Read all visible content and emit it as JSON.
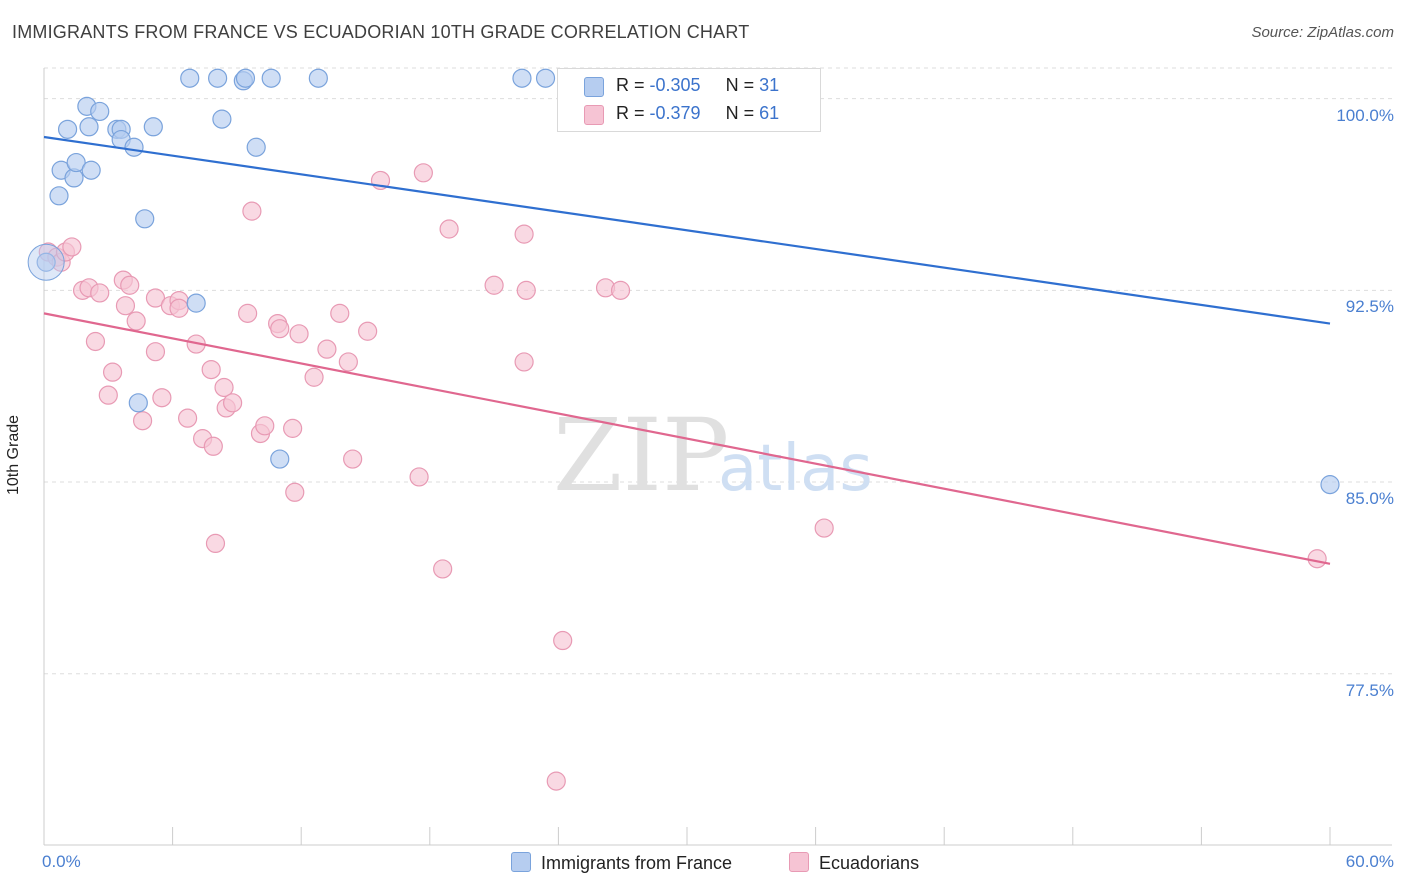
{
  "title": "IMMIGRANTS FROM FRANCE VS ECUADORIAN 10TH GRADE CORRELATION CHART",
  "source": "Source: ZipAtlas.com",
  "watermark": {
    "zip": "ZIP",
    "atlas": "atlas"
  },
  "legend": {
    "r_label": "R =",
    "n_label": "N =",
    "series": [
      {
        "r": "-0.305",
        "n": "31"
      },
      {
        "r": "-0.379",
        "n": "61"
      }
    ]
  },
  "colors": {
    "blue_fill": "#b6cdf0",
    "blue_stroke": "#7aa3dc",
    "blue_line": "#2f6fd0",
    "pink_fill": "#f6c4d4",
    "pink_stroke": "#e89ab4",
    "pink_line": "#e0678f",
    "tick_text": "#4a7fd0",
    "grid": "#dddddd"
  },
  "chart_data": {
    "type": "scatter",
    "title": "IMMIGRANTS FROM FRANCE VS ECUADORIAN 10TH GRADE CORRELATION CHART",
    "xlabel": "",
    "ylabel": "10th Grade",
    "xlim": [
      0,
      60
    ],
    "ylim": [
      70.8,
      101.2
    ],
    "x_tick_labels": [
      "0.0%",
      "60.0%"
    ],
    "y_ticks": [
      100.0,
      92.5,
      85.0,
      77.5
    ],
    "y_tick_labels": [
      "100.0%",
      "92.5%",
      "85.0%",
      "77.5%"
    ],
    "grid": "horizontal dashed",
    "legend_position": "bottom",
    "series": [
      {
        "name": "Immigrants from France",
        "color": "#7aa3dc",
        "points": [
          [
            0.1,
            93.6
          ],
          [
            0.7,
            96.2
          ],
          [
            0.8,
            97.2
          ],
          [
            1.1,
            98.8
          ],
          [
            1.4,
            96.9
          ],
          [
            1.5,
            97.5
          ],
          [
            2.0,
            99.7
          ],
          [
            2.1,
            98.9
          ],
          [
            2.6,
            99.5
          ],
          [
            2.2,
            97.2
          ],
          [
            3.4,
            98.8
          ],
          [
            3.6,
            98.8
          ],
          [
            3.6,
            98.4
          ],
          [
            4.2,
            98.1
          ],
          [
            5.1,
            98.9
          ],
          [
            4.7,
            95.3
          ],
          [
            6.8,
            100.8
          ],
          [
            8.1,
            100.8
          ],
          [
            9.3,
            100.7
          ],
          [
            9.4,
            100.8
          ],
          [
            10.6,
            100.8
          ],
          [
            8.3,
            99.2
          ],
          [
            9.9,
            98.1
          ],
          [
            12.8,
            100.8
          ],
          [
            22.3,
            100.8
          ],
          [
            23.4,
            100.8
          ],
          [
            31.4,
            100.8
          ],
          [
            7.1,
            92.0
          ],
          [
            4.4,
            88.1
          ],
          [
            11.0,
            85.9
          ],
          [
            60.0,
            84.9
          ]
        ]
      },
      {
        "name": "Ecuadorians",
        "color": "#e89ab4",
        "points": [
          [
            0.2,
            94.0
          ],
          [
            0.6,
            93.8
          ],
          [
            0.8,
            93.6
          ],
          [
            1.0,
            94.0
          ],
          [
            1.3,
            94.2
          ],
          [
            1.8,
            92.5
          ],
          [
            2.1,
            92.6
          ],
          [
            2.6,
            92.4
          ],
          [
            2.4,
            90.5
          ],
          [
            3.2,
            89.3
          ],
          [
            3.0,
            88.4
          ],
          [
            3.7,
            92.9
          ],
          [
            3.8,
            91.9
          ],
          [
            4.0,
            92.7
          ],
          [
            4.3,
            91.3
          ],
          [
            4.6,
            87.4
          ],
          [
            5.2,
            92.2
          ],
          [
            5.2,
            90.1
          ],
          [
            5.5,
            88.3
          ],
          [
            5.9,
            91.9
          ],
          [
            6.3,
            92.1
          ],
          [
            6.3,
            91.8
          ],
          [
            6.7,
            87.5
          ],
          [
            7.1,
            90.4
          ],
          [
            7.4,
            86.7
          ],
          [
            7.8,
            89.4
          ],
          [
            7.9,
            86.4
          ],
          [
            8.4,
            88.7
          ],
          [
            8.5,
            87.9
          ],
          [
            8.8,
            88.1
          ],
          [
            9.5,
            91.6
          ],
          [
            9.7,
            95.6
          ],
          [
            10.1,
            86.9
          ],
          [
            10.3,
            87.2
          ],
          [
            10.9,
            91.2
          ],
          [
            11.0,
            91.0
          ],
          [
            11.6,
            87.1
          ],
          [
            11.7,
            84.6
          ],
          [
            11.9,
            90.8
          ],
          [
            12.6,
            89.1
          ],
          [
            13.2,
            90.2
          ],
          [
            13.8,
            91.6
          ],
          [
            14.2,
            89.7
          ],
          [
            14.4,
            85.9
          ],
          [
            15.1,
            90.9
          ],
          [
            15.7,
            96.8
          ],
          [
            17.5,
            85.2
          ],
          [
            17.7,
            97.1
          ],
          [
            18.9,
            94.9
          ],
          [
            18.6,
            81.6
          ],
          [
            21.0,
            92.7
          ],
          [
            22.5,
            92.5
          ],
          [
            22.4,
            94.7
          ],
          [
            22.4,
            89.7
          ],
          [
            24.2,
            78.8
          ],
          [
            23.9,
            73.3
          ],
          [
            26.2,
            92.6
          ],
          [
            26.9,
            92.5
          ],
          [
            8.0,
            82.6
          ],
          [
            36.4,
            83.2
          ],
          [
            59.4,
            82.0
          ]
        ]
      }
    ],
    "trend_lines": [
      {
        "series": "Immigrants from France",
        "x": [
          0,
          60
        ],
        "y": [
          98.5,
          91.2
        ]
      },
      {
        "series": "Ecuadorians",
        "x": [
          0,
          60
        ],
        "y": [
          91.6,
          81.8
        ]
      }
    ]
  }
}
